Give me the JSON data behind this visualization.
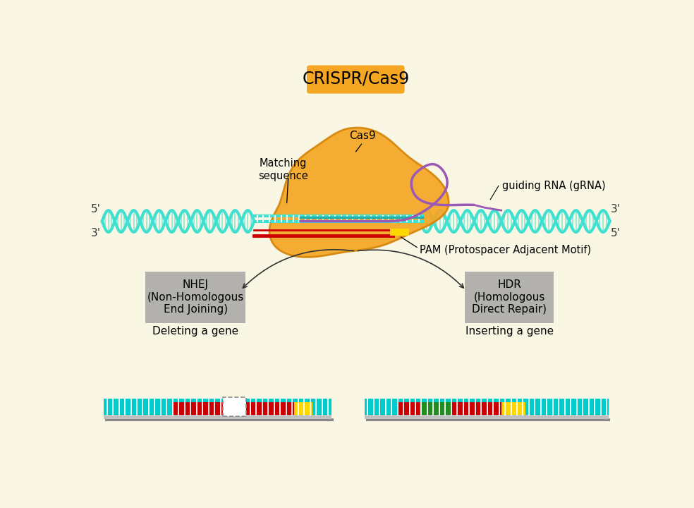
{
  "title": "CRISPR/Cas9",
  "title_bg": "#F5A623",
  "bg_color": "#FAF6E4",
  "dna_color": "#40E0D0",
  "dna_rung": "#40E0D0",
  "cas9_color": "#F5A623",
  "cas9_outline": "#D4850A",
  "grna_color": "#9B59B6",
  "matching_seq_color": "#CC0000",
  "pam_color": "#FFD700",
  "nhej_box_color": "#A0A0A0",
  "hdr_box_color": "#A0A0A0",
  "del_dna_red": "#CC0000",
  "del_dna_cyan": "#00CCCC",
  "del_dna_yellow": "#FFD700",
  "ins_dna_red": "#CC0000",
  "ins_dna_cyan": "#00CCCC",
  "ins_dna_yellow": "#FFD700",
  "ins_dna_green": "#228B22",
  "arrow_color": "#333333",
  "cas9_label": "Cas9",
  "matching_label": "Matching\nsequence",
  "grna_label": "guiding RNA (gRNA)",
  "pam_label": "PAM (Protospacer Adjacent Motif)",
  "nhej_label": "NHEJ\n(Non-Homologous\nEnd Joining)",
  "hdr_label": "HDR\n(Homologous\nDirect Repair)",
  "del_label": "Deleting a gene",
  "ins_label": "Inserting a gene"
}
